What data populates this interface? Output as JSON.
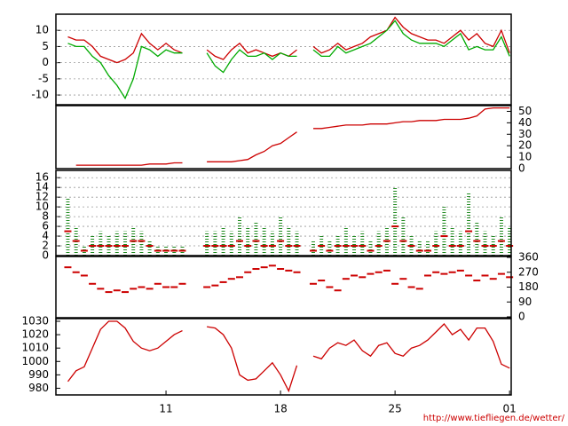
{
  "chart_data": [
    {
      "type": "line",
      "yaxis_side": "left",
      "grid": true,
      "xlim": [
        4.27,
        32.1
      ],
      "ylim": [
        -13,
        15
      ],
      "yticks": [
        -10,
        -5,
        0,
        5,
        10
      ],
      "x": [
        5,
        5.5,
        6,
        6.5,
        7,
        7.5,
        8,
        8.5,
        9,
        9.5,
        10,
        10.5,
        11,
        11.5,
        12,
        12.5,
        13,
        13.5,
        14,
        14.5,
        15,
        15.5,
        16,
        16.5,
        17,
        17.5,
        18,
        18.5,
        19,
        19.5,
        20,
        20.5,
        21,
        21.5,
        22,
        22.5,
        23,
        23.5,
        24,
        24.5,
        25,
        25.5,
        26,
        26.5,
        27,
        27.5,
        28,
        28.5,
        29,
        29.5,
        30,
        30.5,
        31,
        31.5,
        32
      ],
      "series": [
        {
          "color": "#cc0000",
          "values": [
            8,
            7,
            7,
            5,
            2,
            1,
            0,
            1,
            3,
            9,
            6,
            4,
            6,
            4,
            3,
            null,
            null,
            4,
            2,
            1,
            4,
            6,
            3,
            4,
            3,
            2,
            3,
            2,
            4,
            null,
            5,
            3,
            4,
            6,
            4,
            5,
            6,
            8,
            9,
            10,
            14,
            11,
            9,
            8,
            7,
            7,
            6,
            8,
            10,
            7,
            9,
            6,
            5,
            10,
            3
          ]
        },
        {
          "color": "#00aa00",
          "values": [
            6,
            5,
            5,
            2,
            0,
            -4,
            -7,
            -11,
            -5,
            5,
            4,
            2,
            4,
            3,
            3,
            null,
            null,
            3,
            -1,
            -3,
            1,
            4,
            2,
            2,
            3,
            1,
            3,
            2,
            2,
            null,
            4,
            2,
            2,
            5,
            3,
            4,
            5,
            6,
            8,
            10,
            13,
            9,
            7,
            6,
            6,
            6,
            5,
            7,
            9,
            4,
            5,
            4,
            4,
            8,
            2
          ]
        }
      ]
    },
    {
      "type": "line",
      "yaxis_side": "right",
      "grid": false,
      "xlim": [
        4.27,
        32.1
      ],
      "ylim": [
        0,
        55
      ],
      "yticks": [
        0,
        10,
        20,
        30,
        40,
        50
      ],
      "x": [
        5,
        5.5,
        6,
        6.5,
        7,
        7.5,
        8,
        8.5,
        9,
        9.5,
        10,
        10.5,
        11,
        11.5,
        12,
        12.5,
        13,
        13.5,
        14,
        14.5,
        15,
        15.5,
        16,
        16.5,
        17,
        17.5,
        18,
        18.5,
        19,
        19.5,
        20,
        20.5,
        21,
        21.5,
        22,
        22.5,
        23,
        23.5,
        24,
        24.5,
        25,
        25.5,
        26,
        26.5,
        27,
        27.5,
        28,
        28.5,
        29,
        29.5,
        30,
        30.5,
        31,
        31.5,
        32
      ],
      "series": [
        {
          "color": "#cc0000",
          "values": [
            null,
            3,
            3,
            3,
            3,
            3,
            3,
            3,
            3,
            3,
            4,
            4,
            4,
            5,
            5,
            null,
            null,
            6,
            6,
            6,
            6,
            7,
            8,
            12,
            15,
            20,
            22,
            27,
            32,
            null,
            35,
            35,
            36,
            37,
            38,
            38,
            38,
            39,
            39,
            39,
            40,
            41,
            41,
            42,
            42,
            42,
            43,
            43,
            43,
            44,
            46,
            52,
            53,
            53,
            53
          ]
        }
      ]
    },
    {
      "type": "scatter",
      "yaxis_side": "left",
      "grid": true,
      "xlim": [
        4.27,
        32.1
      ],
      "ylim": [
        0,
        17.5
      ],
      "yticks": [
        0,
        2,
        4,
        6,
        8,
        10,
        12,
        14,
        16
      ],
      "x": [
        5,
        5.5,
        6,
        6.5,
        7,
        7.5,
        8,
        8.5,
        9,
        9.5,
        10,
        10.5,
        11,
        11.5,
        12,
        12.5,
        13,
        13.5,
        14,
        14.5,
        15,
        15.5,
        16,
        16.5,
        17,
        17.5,
        18,
        18.5,
        19,
        19.5,
        20,
        20.5,
        21,
        21.5,
        22,
        22.5,
        23,
        23.5,
        24,
        24.5,
        25,
        25.5,
        26,
        26.5,
        27,
        27.5,
        28,
        28.5,
        29,
        29.5,
        30,
        30.5,
        31,
        31.5,
        32
      ],
      "series": [
        {
          "color": "#228b22",
          "marker": "stem",
          "values": [
            12,
            6,
            2,
            4,
            5,
            4,
            5,
            5,
            6,
            5,
            3,
            2,
            2,
            2,
            2,
            null,
            null,
            5,
            5,
            6,
            5,
            8,
            6,
            7,
            6,
            5,
            8,
            6,
            5,
            null,
            3,
            4,
            3,
            4,
            6,
            4,
            5,
            3,
            5,
            6,
            14,
            8,
            4,
            3,
            3,
            5,
            10,
            6,
            5,
            13,
            7,
            5,
            4,
            8,
            6
          ]
        },
        {
          "color": "#cc0000",
          "marker": "dot",
          "values": [
            5,
            3,
            1,
            2,
            2,
            2,
            2,
            2,
            3,
            3,
            2,
            1,
            1,
            1,
            1,
            null,
            null,
            2,
            2,
            2,
            2,
            3,
            2,
            3,
            2,
            2,
            3,
            2,
            2,
            null,
            1,
            2,
            1,
            2,
            2,
            2,
            2,
            1,
            2,
            3,
            6,
            3,
            2,
            1,
            1,
            2,
            4,
            2,
            2,
            5,
            3,
            2,
            2,
            3,
            2
          ]
        }
      ]
    },
    {
      "type": "scatter",
      "yaxis_side": "right",
      "grid": false,
      "xlim": [
        4.27,
        32.1
      ],
      "ylim": [
        0,
        360
      ],
      "yticks": [
        0,
        90,
        180,
        270,
        360
      ],
      "x": [
        5,
        5.5,
        6,
        6.5,
        7,
        7.5,
        8,
        8.5,
        9,
        9.5,
        10,
        10.5,
        11,
        11.5,
        12,
        12.5,
        13,
        13.5,
        14,
        14.5,
        15,
        15.5,
        16,
        16.5,
        17,
        17.5,
        18,
        18.5,
        19,
        19.5,
        20,
        20.5,
        21,
        21.5,
        22,
        22.5,
        23,
        23.5,
        24,
        24.5,
        25,
        25.5,
        26,
        26.5,
        27,
        27.5,
        28,
        28.5,
        29,
        29.5,
        30,
        30.5,
        31,
        31.5,
        32
      ],
      "series": [
        {
          "color": "#cc0000",
          "marker": "dot",
          "values": [
            300,
            270,
            250,
            200,
            170,
            150,
            160,
            150,
            170,
            180,
            170,
            200,
            180,
            180,
            200,
            null,
            null,
            180,
            190,
            210,
            230,
            240,
            270,
            290,
            300,
            310,
            290,
            280,
            270,
            null,
            200,
            220,
            180,
            160,
            230,
            250,
            240,
            260,
            270,
            280,
            200,
            230,
            180,
            170,
            250,
            270,
            260,
            270,
            280,
            250,
            220,
            250,
            230,
            260,
            240
          ]
        }
      ]
    },
    {
      "type": "line",
      "yaxis_side": "left",
      "grid": false,
      "xlim": [
        4.27,
        32.1
      ],
      "ylim": [
        975,
        1032
      ],
      "yticks": [
        980,
        990,
        1000,
        1010,
        1020,
        1030
      ],
      "xticks": [
        11,
        18,
        25,
        {
          "value": 32,
          "label": "01"
        }
      ],
      "x": [
        5,
        5.5,
        6,
        6.5,
        7,
        7.5,
        8,
        8.5,
        9,
        9.5,
        10,
        10.5,
        11,
        11.5,
        12,
        12.5,
        13,
        13.5,
        14,
        14.5,
        15,
        15.5,
        16,
        16.5,
        17,
        17.5,
        18,
        18.5,
        19,
        19.5,
        20,
        20.5,
        21,
        21.5,
        22,
        22.5,
        23,
        23.5,
        24,
        24.5,
        25,
        25.5,
        26,
        26.5,
        27,
        27.5,
        28,
        28.5,
        29,
        29.5,
        30,
        30.5,
        31,
        31.5,
        32
      ],
      "series": [
        {
          "color": "#cc0000",
          "values": [
            985,
            993,
            996,
            1010,
            1024,
            1030,
            1030,
            1025,
            1015,
            1010,
            1008,
            1010,
            1015,
            1020,
            1023,
            null,
            null,
            1026,
            1025,
            1020,
            1010,
            990,
            986,
            987,
            993,
            999,
            990,
            978,
            997,
            null,
            1004,
            1002,
            1010,
            1014,
            1012,
            1016,
            1008,
            1004,
            1012,
            1014,
            1006,
            1004,
            1010,
            1012,
            1016,
            1022,
            1028,
            1020,
            1024,
            1016,
            1025,
            1025,
            1015,
            998,
            995
          ]
        }
      ],
      "source": "http://www.tiefliegen.de/wetter/"
    }
  ]
}
